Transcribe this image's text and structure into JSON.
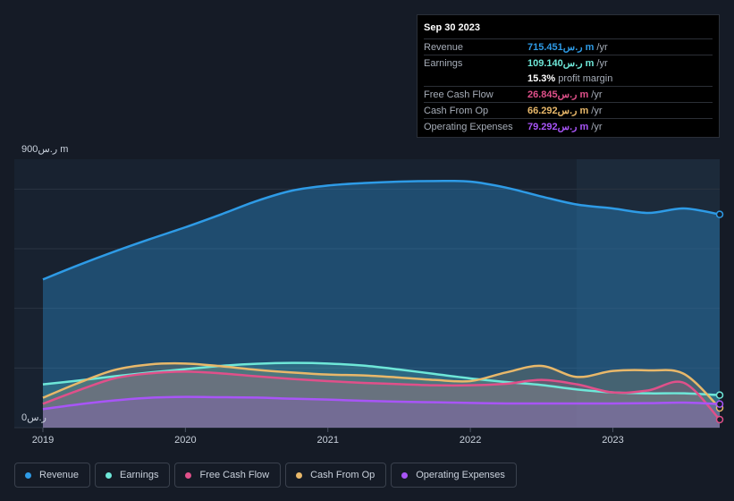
{
  "tooltip": {
    "date": "Sep 30 2023",
    "rows": [
      {
        "label": "Revenue",
        "value": "715.451ر.س m",
        "unit": "/yr",
        "color": "#2e9be6"
      },
      {
        "label": "Earnings",
        "value": "109.140ر.س m",
        "unit": "/yr",
        "color": "#6ee7d8"
      },
      {
        "label": "",
        "value": "15.3%",
        "unit": "profit margin",
        "color": "#ffffff"
      },
      {
        "label": "Free Cash Flow",
        "value": "26.845ر.س m",
        "unit": "/yr",
        "color": "#e0508a"
      },
      {
        "label": "Cash From Op",
        "value": "66.292ر.س m",
        "unit": "/yr",
        "color": "#e8b86a"
      },
      {
        "label": "Operating Expenses",
        "value": "79.292ر.س m",
        "unit": "/yr",
        "color": "#a855f7"
      }
    ]
  },
  "legend": [
    {
      "label": "Revenue",
      "color": "#2e9be6"
    },
    {
      "label": "Earnings",
      "color": "#6ee7d8"
    },
    {
      "label": "Free Cash Flow",
      "color": "#e0508a"
    },
    {
      "label": "Cash From Op",
      "color": "#e8b86a"
    },
    {
      "label": "Operating Expenses",
      "color": "#a855f7"
    }
  ],
  "chart_data": {
    "type": "area",
    "y_top_label": "900ر.س m",
    "y_bottom_label": "0ر.س",
    "ylim": [
      0,
      900
    ],
    "xlim": [
      2019.0,
      2023.75
    ],
    "x_ticks": [
      2019,
      2020,
      2021,
      2022,
      2023
    ],
    "x_tick_labels": [
      "2019",
      "2020",
      "2021",
      "2022",
      "2023"
    ],
    "highlight_start": 2023.75,
    "grid": true,
    "x": [
      2019.0,
      2019.25,
      2019.5,
      2019.75,
      2020.0,
      2020.25,
      2020.5,
      2020.75,
      2021.0,
      2021.25,
      2021.5,
      2021.75,
      2022.0,
      2022.25,
      2022.5,
      2022.75,
      2023.0,
      2023.25,
      2023.5,
      2023.75
    ],
    "series": [
      {
        "name": "Revenue",
        "color": "#2e9be6",
        "values": [
          497,
          545,
          590,
          632,
          672,
          715,
          760,
          795,
          812,
          820,
          825,
          827,
          825,
          805,
          775,
          748,
          735,
          720,
          735,
          715
        ]
      },
      {
        "name": "Earnings",
        "color": "#6ee7d8",
        "values": [
          145,
          158,
          172,
          185,
          196,
          207,
          214,
          217,
          215,
          208,
          195,
          180,
          165,
          153,
          143,
          128,
          118,
          115,
          115,
          109
        ]
      },
      {
        "name": "Free Cash Flow",
        "color": "#e0508a",
        "values": [
          80,
          125,
          165,
          182,
          188,
          182,
          172,
          163,
          156,
          150,
          146,
          142,
          142,
          147,
          160,
          145,
          118,
          125,
          150,
          27
        ]
      },
      {
        "name": "Cash From Op",
        "color": "#e8b86a",
        "values": [
          100,
          150,
          193,
          212,
          215,
          206,
          194,
          185,
          178,
          175,
          168,
          160,
          156,
          185,
          207,
          170,
          190,
          192,
          180,
          66
        ]
      },
      {
        "name": "Operating Expenses",
        "color": "#a855f7",
        "values": [
          62,
          78,
          91,
          100,
          103,
          102,
          101,
          97,
          94,
          90,
          87,
          85,
          83,
          81,
          81,
          81,
          81,
          82,
          84,
          79
        ]
      }
    ]
  }
}
